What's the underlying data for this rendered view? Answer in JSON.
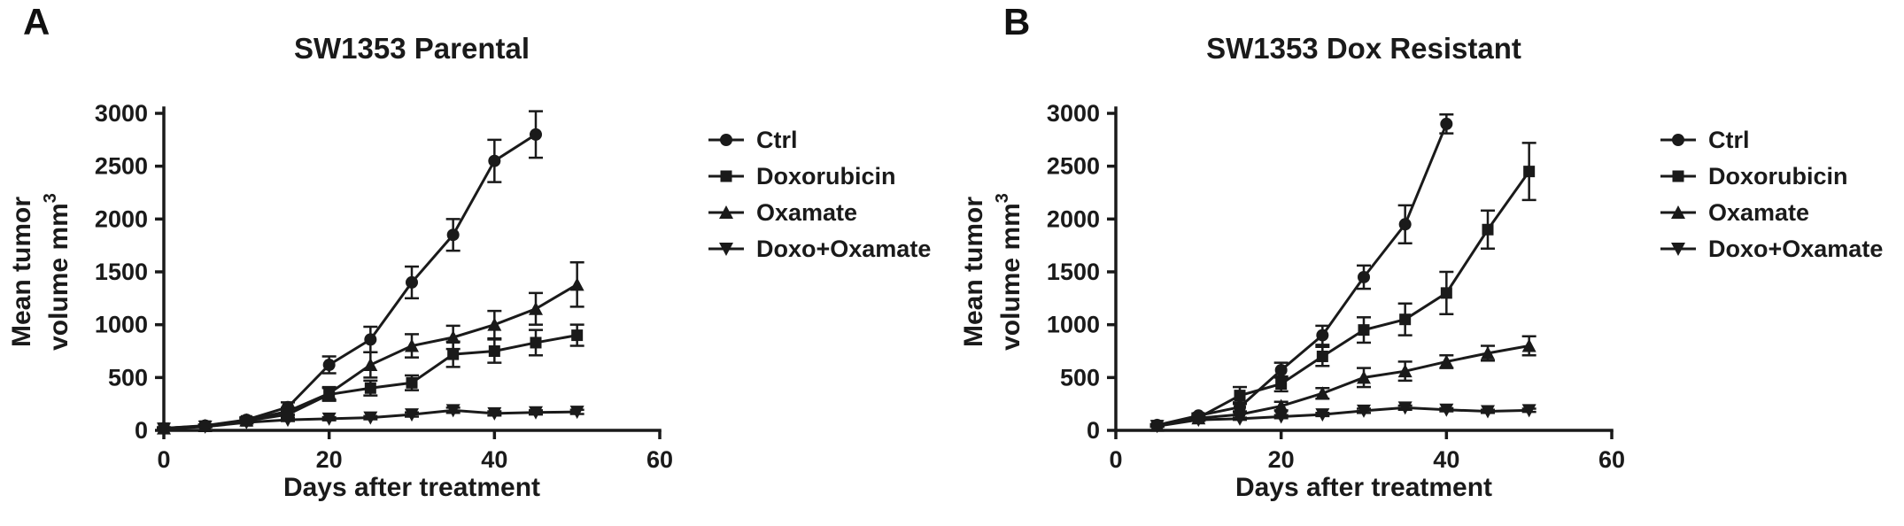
{
  "figure": {
    "background": "#ffffff",
    "line_color": "#1a1a1a",
    "text_color": "#111111"
  },
  "panels": [
    {
      "label": "A",
      "title": "SW1353 Parental"
    },
    {
      "label": "B",
      "title": "SW1353 Dox Resistant"
    }
  ],
  "chart_data": [
    {
      "type": "line",
      "title": "SW1353 Parental",
      "xlabel": "Days after treatment",
      "ylabel": "Mean tumor volume mm³",
      "ylabel_line1": "Mean tumor",
      "ylabel_line2": "volume mm",
      "ylabel_sup": "3",
      "xlim": [
        0,
        60
      ],
      "ylim": [
        0,
        3000
      ],
      "xticks": [
        0,
        20,
        40,
        60
      ],
      "yticks": [
        0,
        500,
        1000,
        1500,
        2000,
        2500,
        3000
      ],
      "grid": false,
      "legend_position": "right",
      "series": [
        {
          "name": "Ctrl",
          "marker": "circle",
          "x": [
            0,
            5,
            10,
            15,
            20,
            25,
            30,
            35,
            40,
            45
          ],
          "y": [
            20,
            45,
            100,
            220,
            620,
            860,
            1400,
            1850,
            2550,
            2800
          ],
          "err": [
            8,
            12,
            25,
            45,
            80,
            120,
            150,
            150,
            200,
            220
          ]
        },
        {
          "name": "Doxorubicin",
          "marker": "square",
          "x": [
            0,
            5,
            10,
            15,
            20,
            25,
            30,
            35,
            40,
            45,
            50
          ],
          "y": [
            20,
            40,
            90,
            150,
            340,
            400,
            450,
            720,
            750,
            830,
            900
          ],
          "err": [
            8,
            10,
            20,
            30,
            60,
            70,
            70,
            120,
            110,
            120,
            100
          ]
        },
        {
          "name": "Oxamate",
          "marker": "triangle-up",
          "x": [
            0,
            5,
            10,
            15,
            20,
            25,
            30,
            35,
            40,
            45,
            50
          ],
          "y": [
            20,
            42,
            95,
            180,
            350,
            620,
            800,
            880,
            1000,
            1150,
            1380
          ],
          "err": [
            8,
            10,
            20,
            35,
            60,
            120,
            110,
            110,
            130,
            150,
            210
          ]
        },
        {
          "name": "Doxo+Oxamate",
          "marker": "triangle-down",
          "x": [
            0,
            5,
            10,
            15,
            20,
            25,
            30,
            35,
            40,
            45,
            50
          ],
          "y": [
            15,
            35,
            75,
            100,
            110,
            120,
            150,
            190,
            160,
            170,
            175
          ],
          "err": [
            5,
            5,
            10,
            12,
            15,
            15,
            20,
            25,
            20,
            20,
            20
          ]
        }
      ]
    },
    {
      "type": "line",
      "title": "SW1353 Dox Resistant",
      "xlabel": "Days after treatment",
      "ylabel": "Mean tumor volume mm³",
      "ylabel_line1": "Mean tumor",
      "ylabel_line2": "volume mm",
      "ylabel_sup": "3",
      "xlim": [
        0,
        60
      ],
      "ylim": [
        0,
        3000
      ],
      "xticks": [
        0,
        20,
        40,
        60
      ],
      "yticks": [
        0,
        500,
        1000,
        1500,
        2000,
        2500,
        3000
      ],
      "grid": false,
      "legend_position": "right",
      "series": [
        {
          "name": "Ctrl",
          "marker": "circle",
          "x": [
            5,
            10,
            15,
            20,
            25,
            30,
            35,
            40
          ],
          "y": [
            50,
            140,
            220,
            570,
            900,
            1450,
            1950,
            2900
          ],
          "err": [
            10,
            20,
            45,
            70,
            90,
            110,
            180,
            90
          ]
        },
        {
          "name": "Doxorubicin",
          "marker": "square",
          "x": [
            5,
            10,
            15,
            20,
            25,
            30,
            35,
            40,
            45,
            50
          ],
          "y": [
            45,
            120,
            330,
            440,
            700,
            950,
            1050,
            1300,
            1900,
            2450
          ],
          "err": [
            10,
            20,
            80,
            70,
            90,
            120,
            150,
            200,
            180,
            270
          ]
        },
        {
          "name": "Oxamate",
          "marker": "triangle-up",
          "x": [
            5,
            10,
            15,
            20,
            25,
            30,
            35,
            40,
            45,
            50
          ],
          "y": [
            45,
            115,
            150,
            230,
            350,
            500,
            560,
            650,
            730,
            800
          ],
          "err": [
            10,
            20,
            30,
            40,
            50,
            90,
            90,
            60,
            70,
            90
          ]
        },
        {
          "name": "Doxo+Oxamate",
          "marker": "triangle-down",
          "x": [
            5,
            10,
            15,
            20,
            25,
            30,
            35,
            40,
            45,
            50
          ],
          "y": [
            40,
            100,
            110,
            130,
            150,
            185,
            215,
            195,
            180,
            190
          ],
          "err": [
            5,
            10,
            10,
            15,
            15,
            20,
            20,
            15,
            15,
            15
          ]
        }
      ]
    }
  ]
}
